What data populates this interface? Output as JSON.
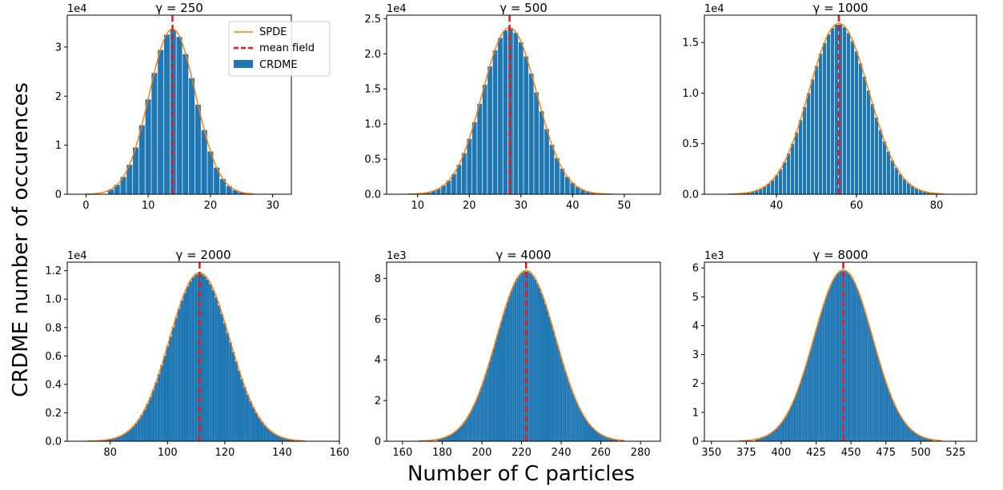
{
  "figure": {
    "ylabel": "CRDME number of occurences",
    "xlabel": "Number of C particles"
  },
  "legend": {
    "spde": "SPDE",
    "mean_field": "mean field",
    "crdme": "CRDME"
  },
  "colors": {
    "bar": "#1f77b4",
    "spde": "#ff7f0e",
    "mean_field": "#e41a1c"
  },
  "chart_data": [
    {
      "type": "bar",
      "title": "γ = 250",
      "gamma": 250,
      "mean": 13.9,
      "sd": 3.72,
      "peak": 33500,
      "bin_width": 1,
      "bar_range": [
        4,
        26
      ],
      "curve_range": [
        0,
        27
      ],
      "xlim": [
        -3,
        33
      ],
      "xticks": [
        0,
        10,
        20,
        30
      ],
      "ylim": [
        0,
        36500
      ],
      "yticks": [
        0,
        1,
        2,
        3
      ],
      "yticks_labels": [
        "0",
        "1",
        "2",
        "3"
      ],
      "scale_label": "1e4",
      "scale": 10000
    },
    {
      "type": "bar",
      "title": "γ = 500",
      "gamma": 500,
      "mean": 27.8,
      "sd": 5.27,
      "peak": 23600,
      "bin_width": 1,
      "bar_range": [
        11,
        47
      ],
      "curve_range": [
        8,
        48
      ],
      "xlim": [
        4,
        57
      ],
      "xticks": [
        10,
        20,
        30,
        40,
        50
      ],
      "ylim": [
        0,
        25500
      ],
      "yticks": [
        0,
        0.5,
        1.0,
        1.5,
        2.0,
        2.5
      ],
      "yticks_labels": [
        "0.0",
        "0.5",
        "1.0",
        "1.5",
        "2.0",
        "2.5"
      ],
      "scale_label": "1e4",
      "scale": 10000
    },
    {
      "type": "bar",
      "title": "γ = 1000",
      "gamma": 1000,
      "mean": 55.6,
      "sd": 7.45,
      "peak": 16800,
      "bin_width": 1,
      "bar_range": [
        32,
        80
      ],
      "curve_range": [
        28,
        82
      ],
      "xlim": [
        22,
        90
      ],
      "xticks": [
        40,
        60,
        80
      ],
      "ylim": [
        0,
        17700
      ],
      "yticks": [
        0,
        0.5,
        1.0,
        1.5
      ],
      "yticks_labels": [
        "0.0",
        "0.5",
        "1.0",
        "1.5"
      ],
      "scale_label": "1e4",
      "scale": 10000
    },
    {
      "type": "bar",
      "title": "γ = 2000",
      "gamma": 2000,
      "mean": 111.2,
      "sd": 10.5,
      "peak": 11800,
      "bin_width": 1,
      "bar_range": [
        78,
        144
      ],
      "curve_range": [
        72,
        148
      ],
      "xlim": [
        65,
        160
      ],
      "xticks": [
        80,
        100,
        120,
        140,
        160
      ],
      "ylim": [
        0,
        12600
      ],
      "yticks": [
        0,
        0.2,
        0.4,
        0.6,
        0.8,
        1.0,
        1.2
      ],
      "yticks_labels": [
        "0.0",
        "0.2",
        "0.4",
        "0.6",
        "0.8",
        "1.0",
        "1.2"
      ],
      "scale_label": "1e4",
      "scale": 10000
    },
    {
      "type": "bar",
      "title": "γ = 4000",
      "gamma": 4000,
      "mean": 222.3,
      "sd": 14.9,
      "peak": 8350,
      "bin_width": 1,
      "bar_range": [
        178,
        268
      ],
      "curve_range": [
        168,
        272
      ],
      "xlim": [
        152,
        290
      ],
      "xticks": [
        160,
        180,
        200,
        220,
        240,
        260,
        280
      ],
      "ylim": [
        0,
        8800
      ],
      "yticks": [
        0,
        2,
        4,
        6,
        8
      ],
      "yticks_labels": [
        "0",
        "2",
        "4",
        "6",
        "8"
      ],
      "scale_label": "1e3",
      "scale": 1000
    },
    {
      "type": "bar",
      "title": "γ = 8000",
      "gamma": 8000,
      "mean": 444.5,
      "sd": 21.0,
      "peak": 5900,
      "bin_width": 1,
      "bar_range": [
        382,
        508
      ],
      "curve_range": [
        370,
        515
      ],
      "xlim": [
        345,
        540
      ],
      "xticks": [
        350,
        375,
        400,
        425,
        450,
        475,
        500,
        525
      ],
      "ylim": [
        0,
        6200
      ],
      "yticks": [
        0,
        1,
        2,
        3,
        4,
        5,
        6
      ],
      "yticks_labels": [
        "0",
        "1",
        "2",
        "3",
        "4",
        "5",
        "6"
      ],
      "scale_label": "1e3",
      "scale": 1000
    }
  ]
}
